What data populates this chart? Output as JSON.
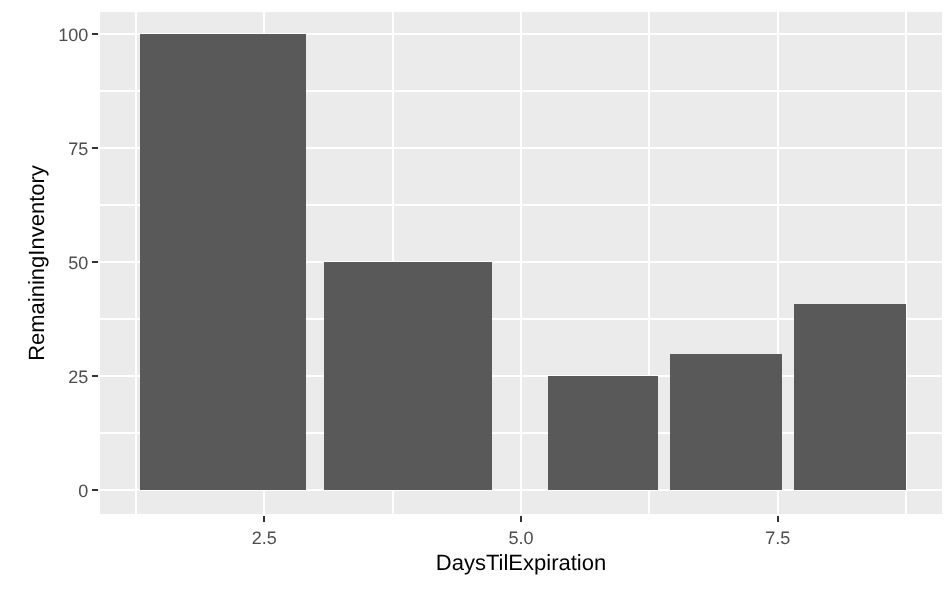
{
  "chart_data": {
    "type": "bar",
    "xlabel": "DaysTilExpiration",
    "ylabel": "RemainingInventory",
    "x": [
      2.1,
      3.9,
      5.8,
      7.0,
      8.2
    ],
    "values": [
      100,
      50,
      25,
      30,
      41
    ],
    "color": "#595959",
    "xlim": [
      0.9,
      9.1
    ],
    "ylim": [
      -5.2,
      104.9
    ],
    "xticks": [
      {
        "value": 2.5,
        "label": "2.5"
      },
      {
        "value": 5.0,
        "label": "5.0"
      },
      {
        "value": 7.5,
        "label": "7.5"
      }
    ],
    "yticks": [
      0,
      25,
      50,
      75,
      100
    ],
    "grid": true
  }
}
